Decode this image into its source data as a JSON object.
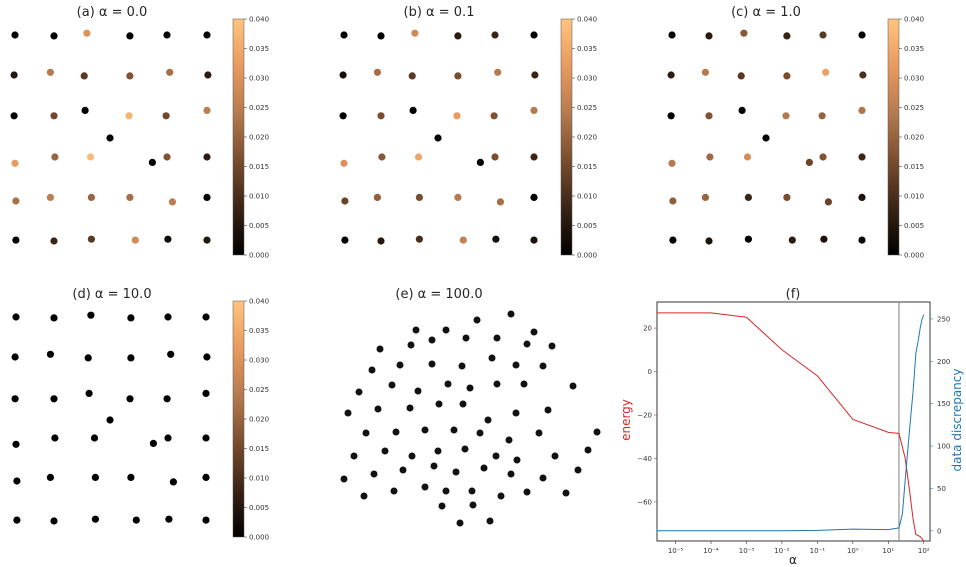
{
  "colors": {
    "energy": "#d62728",
    "discrepancy": "#1f77b4",
    "vline": "#7f7f7f",
    "colormap_stops": [
      "#000000",
      "#3a2415",
      "#7a4d2f",
      "#b57a4f",
      "#e89a5f",
      "#ffc47f"
    ]
  },
  "chart_data": [
    {
      "type": "scatter",
      "title": "(a) α = 0.0",
      "colorbar": {
        "range": [
          0,
          0.04
        ],
        "ticks": [
          "0.000",
          "0.005",
          "0.010",
          "0.015",
          "0.020",
          "0.025",
          "0.030",
          "0.035",
          "0.040"
        ]
      },
      "points": [
        [
          0.0,
          0.0,
          0.0
        ],
        [
          1.0,
          0.0,
          0.0
        ],
        [
          2.0,
          0.0,
          0.0
        ],
        [
          3.0,
          0.0,
          0.0
        ],
        [
          4.0,
          0.0,
          0.0
        ],
        [
          5.0,
          0.0,
          0.0
        ],
        [
          0.0,
          1.0,
          0.0
        ],
        [
          1.0,
          1.0,
          0.0
        ],
        [
          2.0,
          1.0,
          0.0
        ],
        [
          3.0,
          1.0,
          0.0
        ],
        [
          4.0,
          1.0,
          0.0
        ],
        [
          5.0,
          1.0,
          0.0
        ],
        [
          0.0,
          2.0,
          0.0
        ],
        [
          1.0,
          2.0,
          0.0
        ],
        [
          2.0,
          2.0,
          0.0
        ],
        [
          3.0,
          2.0,
          0.0
        ],
        [
          4.0,
          2.0,
          0.0
        ],
        [
          5.0,
          2.0,
          0.0
        ],
        [
          0.0,
          3.0,
          0.0
        ],
        [
          1.0,
          3.0,
          0.0
        ],
        [
          2.0,
          3.0,
          0.0
        ],
        [
          3.0,
          3.0,
          0.0
        ],
        [
          4.0,
          3.0,
          0.0
        ],
        [
          5.0,
          3.0,
          0.0
        ],
        [
          0.0,
          4.0,
          0.0
        ],
        [
          1.0,
          4.0,
          0.0
        ],
        [
          2.0,
          4.0,
          0.0
        ],
        [
          3.0,
          4.0,
          0.0
        ],
        [
          4.0,
          4.0,
          0.0
        ],
        [
          5.0,
          4.0,
          0.0
        ],
        [
          0.0,
          5.0,
          0.0
        ],
        [
          1.0,
          5.0,
          0.0
        ],
        [
          2.0,
          5.0,
          0.0
        ],
        [
          3.0,
          5.0,
          0.0
        ],
        [
          4.0,
          5.0,
          0.0
        ],
        [
          5.0,
          5.0,
          0.0
        ],
        [
          2.5,
          2.5,
          0.0
        ]
      ]
    },
    {
      "type": "scatter",
      "title": "(b) α = 0.1",
      "colorbar": {
        "range": [
          0,
          0.04
        ],
        "ticks": [
          "0.000",
          "0.005",
          "0.010",
          "0.015",
          "0.020",
          "0.025",
          "0.030",
          "0.035",
          "0.040"
        ]
      },
      "points": []
    },
    {
      "type": "scatter",
      "title": "(c) α = 1.0",
      "colorbar": {
        "range": [
          0,
          0.04
        ],
        "ticks": [
          "0.000",
          "0.005",
          "0.010",
          "0.015",
          "0.020",
          "0.025",
          "0.030",
          "0.035",
          "0.040"
        ]
      },
      "points": []
    },
    {
      "type": "scatter",
      "title": "(d) α = 10.0",
      "colorbar": {
        "range": [
          0,
          0.04
        ],
        "ticks": [
          "0.000",
          "0.005",
          "0.010",
          "0.015",
          "0.020",
          "0.025",
          "0.030",
          "0.035",
          "0.040"
        ]
      },
      "points": []
    },
    {
      "type": "scatter",
      "title": "(e) α = 100.0",
      "points": []
    },
    {
      "type": "line",
      "title": "(f)",
      "xlabel": "α",
      "ylabel_left": "energy",
      "ylabel_right": "data discrepancy",
      "xscale": "log",
      "xlim": [
        3e-06,
        150
      ],
      "xticks": [
        "10⁻⁵",
        "10⁻⁴",
        "10⁻³",
        "10⁻²",
        "10⁻¹",
        "10⁰",
        "10¹",
        "10²"
      ],
      "ylim_left": [
        -78,
        32
      ],
      "yticks_left": [
        "20",
        "0",
        "−20",
        "−40",
        "−60"
      ],
      "ylim_right": [
        -12,
        270
      ],
      "yticks_right": [
        "250",
        "200",
        "150",
        "100",
        "50",
        "0"
      ],
      "vline_x": 20,
      "series": [
        {
          "axis": "left",
          "x": [
            3e-06,
            1e-05,
            0.0001,
            0.001,
            0.01,
            0.1,
            1,
            10,
            20,
            30,
            40,
            50,
            60,
            70,
            80,
            90,
            100
          ],
          "values": [
            27,
            27,
            27,
            25,
            10,
            -2,
            -22,
            -28,
            -28.5,
            -40,
            -55,
            -68,
            -75,
            -75.5,
            -76,
            -77,
            -78
          ]
        },
        {
          "axis": "right",
          "x": [
            3e-06,
            1e-05,
            0.0001,
            0.001,
            0.01,
            0.1,
            1,
            10,
            20,
            25,
            30,
            40,
            50,
            60,
            70,
            80,
            90,
            100
          ],
          "values": [
            0,
            0,
            0,
            0,
            0,
            0.5,
            2,
            1.5,
            3.5,
            20,
            60,
            120,
            165,
            210,
            225,
            240,
            250,
            255
          ]
        }
      ]
    }
  ]
}
